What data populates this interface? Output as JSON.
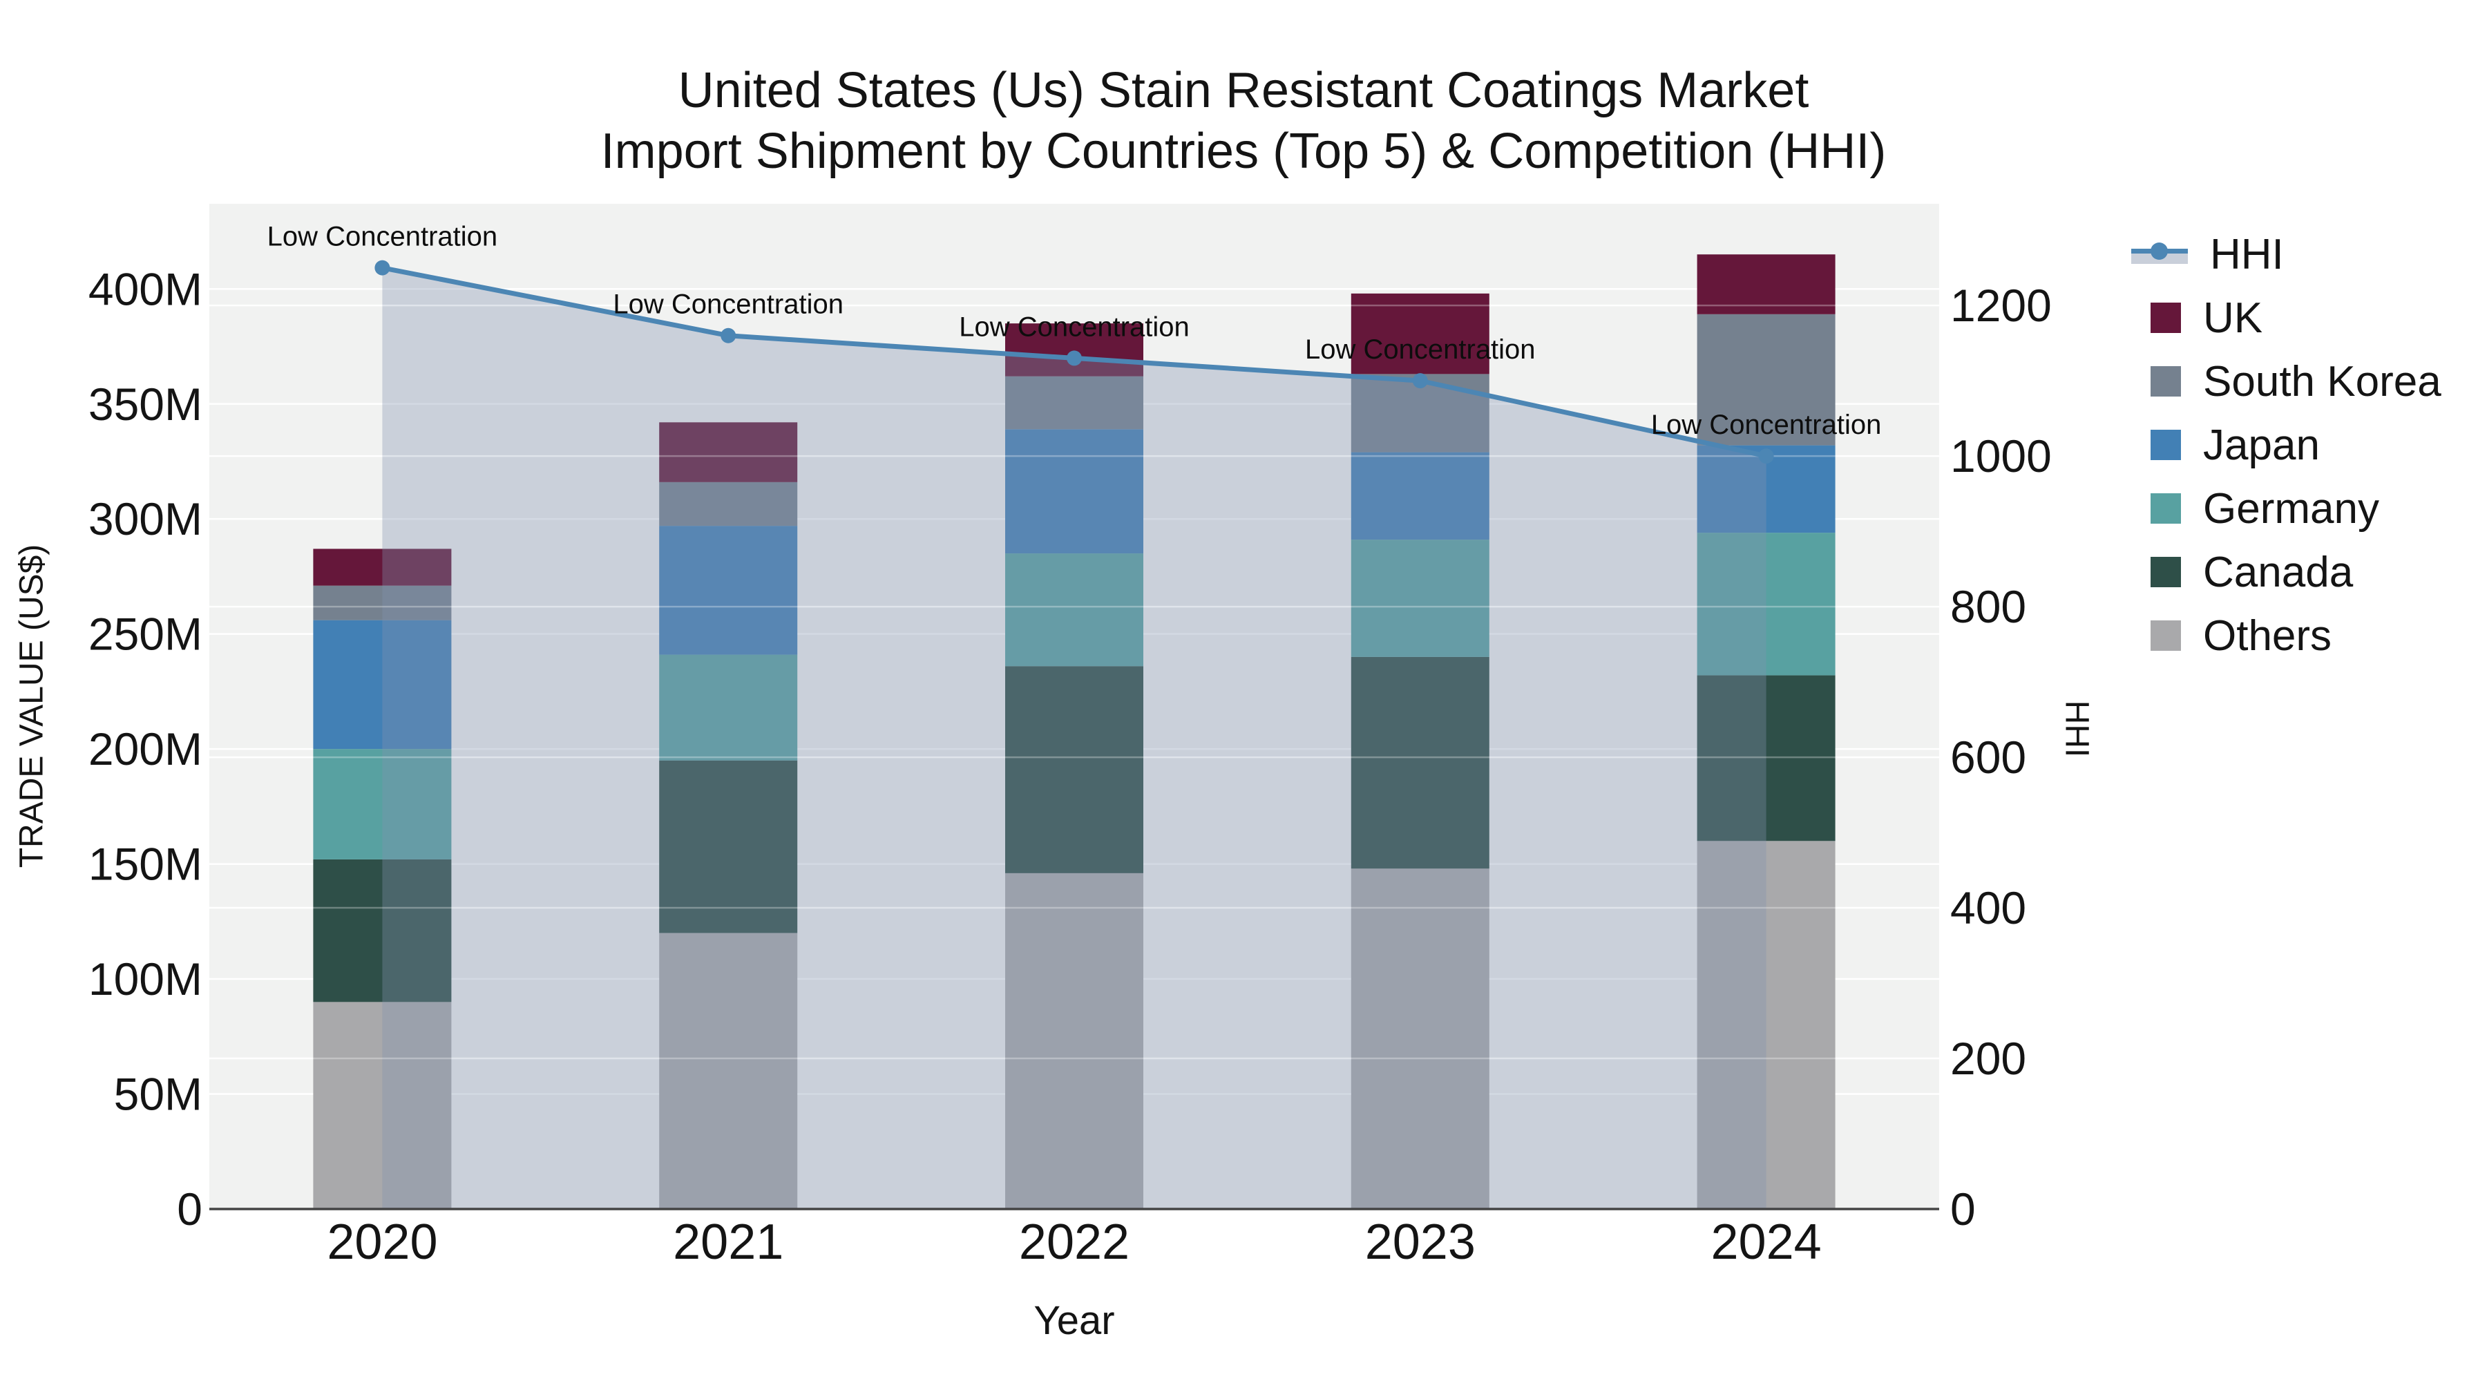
{
  "chart_data": {
    "type": "bar",
    "subtype": "stacked-bars-with-line-overlay",
    "title_line1": "United States (Us) Stain Resistant Coatings Market",
    "title_line2": "Import Shipment by Countries (Top 5) & Competition (HHI)",
    "categories": [
      "2020",
      "2021",
      "2022",
      "2023",
      "2024"
    ],
    "x_title": "Year",
    "y_left": {
      "title": "TRADE VALUE (US$)",
      "unit": "millions US$",
      "max": 437,
      "ticks": [
        {
          "value": 0,
          "label": "0"
        },
        {
          "value": 50,
          "label": "50M"
        },
        {
          "value": 100,
          "label": "100M"
        },
        {
          "value": 150,
          "label": "150M"
        },
        {
          "value": 200,
          "label": "200M"
        },
        {
          "value": 250,
          "label": "250M"
        },
        {
          "value": 300,
          "label": "300M"
        },
        {
          "value": 350,
          "label": "350M"
        },
        {
          "value": 400,
          "label": "400M"
        }
      ]
    },
    "y_right": {
      "title": "HHI",
      "max": 1335,
      "ticks": [
        {
          "value": 0,
          "label": "0"
        },
        {
          "value": 200,
          "label": "200"
        },
        {
          "value": 400,
          "label": "400"
        },
        {
          "value": 600,
          "label": "600"
        },
        {
          "value": 800,
          "label": "800"
        },
        {
          "value": 1000,
          "label": "1000"
        },
        {
          "value": 1200,
          "label": "1200"
        }
      ]
    },
    "stack_order_bottom_to_top": [
      "Others",
      "Canada",
      "Germany",
      "Japan",
      "South Korea",
      "UK"
    ],
    "series": [
      {
        "name": "UK",
        "color": "#65173a",
        "values": [
          16,
          26,
          23,
          35,
          26
        ]
      },
      {
        "name": "South Korea",
        "color": "#75818f",
        "values": [
          15,
          19,
          23,
          34,
          57
        ]
      },
      {
        "name": "Japan",
        "color": "#4280b5",
        "values": [
          56,
          56,
          54,
          38,
          38
        ]
      },
      {
        "name": "Germany",
        "color": "#58a1a1",
        "values": [
          48,
          46,
          49,
          51,
          62
        ]
      },
      {
        "name": "Canada",
        "color": "#2e4f48",
        "values": [
          62,
          75,
          90,
          92,
          72
        ]
      },
      {
        "name": "Others",
        "color": "#a9a9ab",
        "values": [
          90,
          120,
          146,
          148,
          160
        ]
      }
    ],
    "hhi": {
      "name": "HHI",
      "color": "#4c86b4",
      "area_fill": "rgba(128,145,176,0.35)",
      "values": [
        1250,
        1160,
        1130,
        1100,
        1000
      ]
    },
    "annotations": [
      "Low Concentration",
      "Low Concentration",
      "Low Concentration",
      "Low Concentration",
      "Low Concentration"
    ],
    "legend_labels": [
      "HHI",
      "UK",
      "South Korea",
      "Japan",
      "Germany",
      "Canada",
      "Others"
    ],
    "legend_position": "right",
    "grid": "on",
    "colors": {
      "plot_bg": "#f1f2f1",
      "grid_line": "#ffffff",
      "grid_overlay": "rgba(255,255,255,0.30)",
      "axis_line": "#444444",
      "text": "#141414"
    }
  }
}
